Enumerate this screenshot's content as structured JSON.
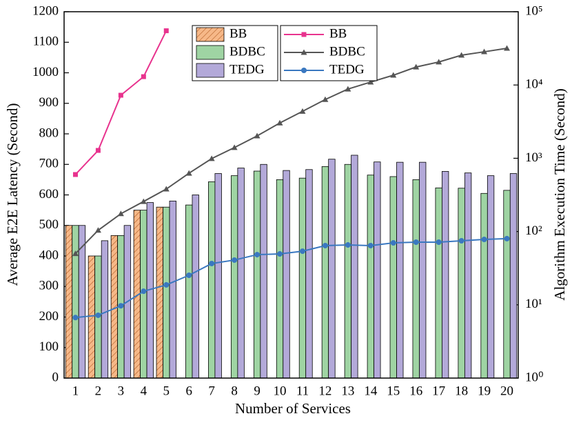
{
  "chart_data": {
    "type": "combo",
    "xlabel": "Number of Services",
    "ylabel": "Average E2E Latency (Second)",
    "y2label": "Algorithm Execution Time (Second)",
    "categories": [
      "1",
      "2",
      "3",
      "4",
      "5",
      "6",
      "7",
      "8",
      "9",
      "10",
      "11",
      "12",
      "13",
      "14",
      "15",
      "16",
      "17",
      "18",
      "19",
      "20"
    ],
    "ylim": [
      0,
      1200
    ],
    "yticks": [
      0,
      100,
      200,
      300,
      400,
      500,
      600,
      700,
      800,
      900,
      1000,
      1100,
      1200
    ],
    "y2lim": [
      1,
      100000
    ],
    "y2log": true,
    "y2ticks": [
      {
        "value": 1,
        "label": "10⁰"
      },
      {
        "value": 10,
        "label": "10¹"
      },
      {
        "value": 100,
        "label": "10²"
      },
      {
        "value": 1000,
        "label": "10³"
      },
      {
        "value": 10000,
        "label": "10⁴"
      },
      {
        "value": 100000,
        "label": "10⁵"
      }
    ],
    "series": [
      {
        "name": "BB",
        "type": "bar",
        "color": "#f6b888",
        "pattern": "hatch",
        "values": [
          500,
          400,
          467,
          550,
          560,
          null,
          null,
          null,
          null,
          null,
          null,
          null,
          null,
          null,
          null,
          null,
          null,
          null,
          null,
          null
        ]
      },
      {
        "name": "BDBC",
        "type": "bar",
        "color": "#9fd4a3",
        "values": [
          500,
          400,
          467,
          550,
          560,
          567,
          643,
          663,
          678,
          650,
          655,
          693,
          700,
          665,
          660,
          650,
          623,
          622,
          605,
          615
        ]
      },
      {
        "name": "TEDG",
        "type": "bar",
        "color": "#b3a9d9",
        "values": [
          500,
          450,
          500,
          575,
          580,
          600,
          670,
          688,
          700,
          680,
          683,
          717,
          730,
          708,
          707,
          707,
          677,
          672,
          663,
          670
        ]
      },
      {
        "name": "BB",
        "type": "line",
        "axis": "y2",
        "marker": "square",
        "color": "#e8338e",
        "values": [
          600,
          1280,
          7250,
          13000,
          55000,
          null,
          null,
          null,
          null,
          null,
          null,
          null,
          null,
          null,
          null,
          null,
          null,
          null,
          null,
          null
        ]
      },
      {
        "name": "BDBC",
        "type": "line",
        "axis": "y2",
        "marker": "triangle",
        "color": "#555555",
        "values": [
          50,
          104,
          175,
          257,
          380,
          625,
          990,
          1400,
          2020,
          3030,
          4370,
          6340,
          8800,
          10960,
          13600,
          17600,
          20600,
          25500,
          28400,
          31700
        ]
      },
      {
        "name": "TEDG",
        "type": "line",
        "axis": "y2",
        "marker": "circle",
        "color": "#3a78c0",
        "values": [
          6.7,
          7.2,
          9.7,
          15.3,
          18.7,
          25.3,
          36.6,
          40.8,
          48.4,
          49.5,
          53.9,
          64.3,
          65.6,
          64.3,
          70,
          71.6,
          71.6,
          74.8,
          78,
          80
        ]
      }
    ]
  }
}
